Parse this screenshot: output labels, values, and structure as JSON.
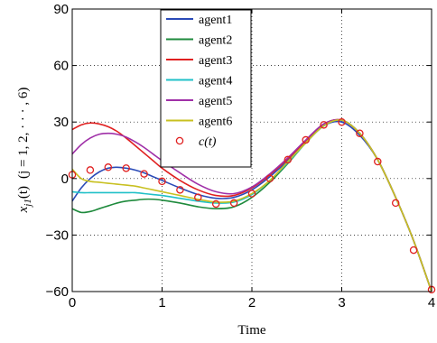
{
  "chart_data": {
    "type": "line",
    "title": "",
    "xlabel": "Time",
    "ylabel": "x_{j1}(t)  (j = 1, 2, · · · , 6)",
    "ylabel_parts": {
      "var": "x",
      "sub": "j1",
      "arg": "(t)",
      "paren": "(j = 1, 2, · · · , 6)"
    },
    "xlim": [
      0,
      4
    ],
    "ylim": [
      -60,
      90
    ],
    "xticks": [
      0,
      1,
      2,
      3,
      4
    ],
    "yticks": [
      -60,
      -30,
      0,
      30,
      60,
      90
    ],
    "xtick_labels": [
      "0",
      "1",
      "2",
      "3",
      "4"
    ],
    "ytick_labels": [
      "−60",
      "−30",
      "0",
      "30",
      "60",
      "90"
    ],
    "grid": true,
    "legend_position": "top-center",
    "series": [
      {
        "name": "agent1",
        "color": "#2B4BB8",
        "x": [
          0,
          0.1,
          0.2,
          0.3,
          0.4,
          0.5,
          0.6,
          0.7,
          0.8,
          0.9,
          1.0,
          1.2,
          1.4,
          1.6,
          1.8,
          2.0,
          2.2,
          2.4,
          2.6,
          2.8,
          3.0,
          3.2,
          3.4,
          3.6,
          3.8,
          4.0
        ],
        "values": [
          -12,
          -5,
          0,
          3.5,
          5.5,
          6,
          5.5,
          4.5,
          3,
          1,
          -1,
          -5,
          -8.5,
          -10.5,
          -10,
          -6,
          1,
          9.5,
          19,
          28,
          30,
          23,
          10,
          -10,
          -33,
          -60
        ]
      },
      {
        "name": "agent2",
        "color": "#1E8A3C",
        "x": [
          0,
          0.1,
          0.2,
          0.3,
          0.4,
          0.5,
          0.6,
          0.7,
          0.8,
          0.9,
          1.0,
          1.2,
          1.4,
          1.6,
          1.8,
          2.0,
          2.2,
          2.4,
          2.6,
          2.8,
          3.0,
          3.2,
          3.4,
          3.6,
          3.8,
          4.0
        ],
        "values": [
          -16,
          -18,
          -17.5,
          -16,
          -14.5,
          -13,
          -12,
          -11.5,
          -11,
          -11,
          -11.5,
          -13,
          -15,
          -16,
          -15,
          -10,
          -2,
          8,
          19,
          28,
          31,
          24,
          10,
          -10,
          -33,
          -60
        ]
      },
      {
        "name": "agent3",
        "color": "#E02020",
        "x": [
          0,
          0.1,
          0.2,
          0.3,
          0.4,
          0.5,
          0.6,
          0.7,
          0.8,
          0.9,
          1.0,
          1.2,
          1.4,
          1.6,
          1.8,
          2.0,
          2.2,
          2.4,
          2.6,
          2.8,
          3.0,
          3.2,
          3.4,
          3.6,
          3.8,
          4.0
        ],
        "values": [
          26,
          28.5,
          29.5,
          29,
          27.5,
          25,
          21.5,
          17.5,
          13.5,
          9.5,
          5.5,
          -1,
          -6,
          -9,
          -9,
          -5,
          2,
          10.5,
          20,
          29,
          31,
          24,
          10,
          -10,
          -33,
          -60
        ]
      },
      {
        "name": "agent4",
        "color": "#20C0C8",
        "x": [
          0,
          0.1,
          0.2,
          0.3,
          0.4,
          0.5,
          0.6,
          0.7,
          0.8,
          0.9,
          1.0,
          1.2,
          1.4,
          1.6,
          1.8,
          2.0,
          2.2,
          2.4,
          2.6,
          2.8,
          3.0,
          3.2,
          3.4,
          3.6,
          3.8,
          4.0
        ],
        "values": [
          -7,
          -7.5,
          -7.5,
          -7.5,
          -7.5,
          -7.5,
          -7.5,
          -7.5,
          -8,
          -8.5,
          -9,
          -10.5,
          -12,
          -13,
          -12.5,
          -8.5,
          -1,
          8.5,
          19,
          28,
          31,
          24,
          10,
          -10,
          -33,
          -60
        ]
      },
      {
        "name": "agent5",
        "color": "#A030A8",
        "x": [
          0,
          0.1,
          0.2,
          0.3,
          0.4,
          0.5,
          0.6,
          0.7,
          0.8,
          0.9,
          1.0,
          1.2,
          1.4,
          1.6,
          1.8,
          2.0,
          2.2,
          2.4,
          2.6,
          2.8,
          3.0,
          3.2,
          3.4,
          3.6,
          3.8,
          4.0
        ],
        "values": [
          13,
          18,
          21.5,
          23.5,
          24,
          23.5,
          22,
          19.5,
          16.5,
          13,
          9.5,
          3,
          -3,
          -7,
          -8,
          -4.5,
          2.5,
          11,
          20.5,
          29,
          31,
          24,
          10,
          -10,
          -33,
          -60
        ]
      },
      {
        "name": "agent6",
        "color": "#C8C020",
        "x": [
          0,
          0.1,
          0.2,
          0.3,
          0.4,
          0.5,
          0.6,
          0.7,
          0.8,
          0.9,
          1.0,
          1.2,
          1.4,
          1.6,
          1.8,
          2.0,
          2.2,
          2.4,
          2.6,
          2.8,
          3.0,
          3.2,
          3.4,
          3.6,
          3.8,
          4.0
        ],
        "values": [
          5,
          0,
          -1.5,
          -2,
          -2.5,
          -3,
          -3.5,
          -4,
          -5,
          -6,
          -7,
          -9,
          -11,
          -12.5,
          -12,
          -8,
          -1,
          9,
          19,
          28,
          31,
          24,
          10,
          -10,
          -33,
          -60
        ]
      }
    ],
    "markers": {
      "name": "c(t)",
      "color": "#E02020",
      "x": [
        0,
        0.2,
        0.4,
        0.6,
        0.8,
        1.0,
        1.2,
        1.4,
        1.6,
        1.8,
        2.0,
        2.2,
        2.4,
        2.6,
        2.8,
        3.0,
        3.2,
        3.4,
        3.6,
        3.8,
        4.0
      ],
      "values": [
        2,
        4.5,
        6,
        5.5,
        2.5,
        -1.5,
        -6,
        -10,
        -13.5,
        -13,
        -8,
        0,
        10,
        20.5,
        28.5,
        30,
        24,
        9,
        -13,
        -38,
        -59
      ]
    }
  }
}
